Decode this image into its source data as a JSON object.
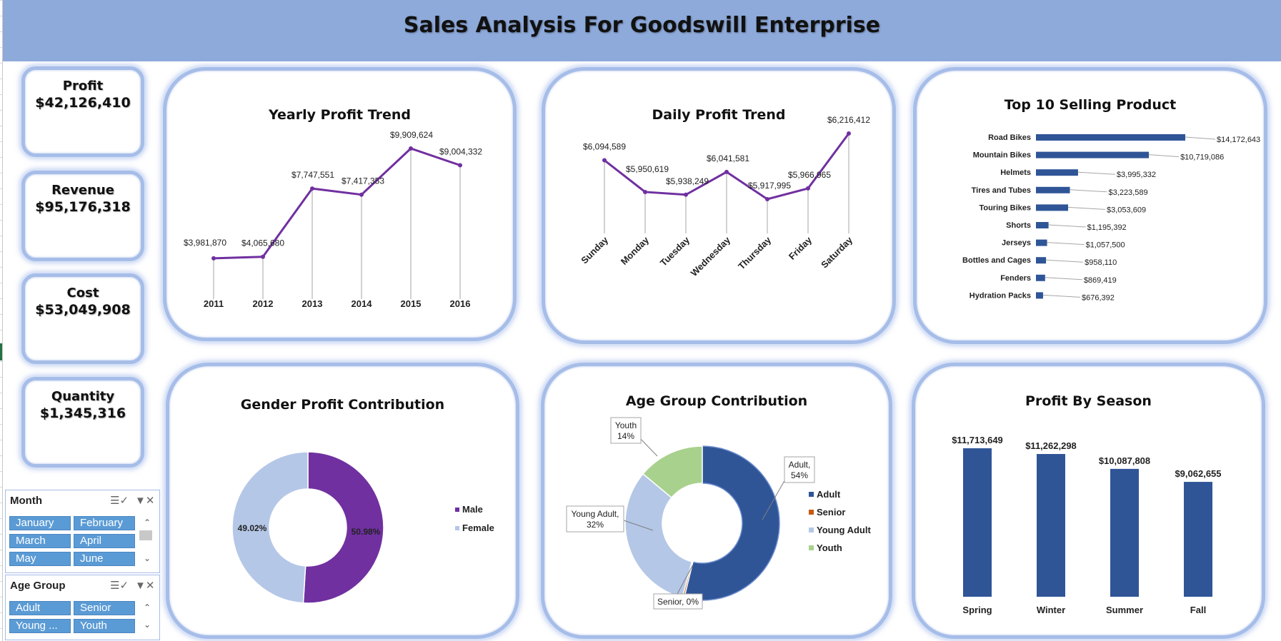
{
  "title": "Sales Analysis For Goodswill Enterprise",
  "kpis": [
    {
      "label": "Profit",
      "value": "$42,126,410"
    },
    {
      "label": "Revenue",
      "value": "$95,176,318"
    },
    {
      "label": "Cost",
      "value": "$53,049,908"
    },
    {
      "label": "Quantity",
      "value": "$1,345,316"
    }
  ],
  "slicers": {
    "month": {
      "title": "Month",
      "items": [
        "January",
        "February",
        "March",
        "April",
        "May",
        "June"
      ]
    },
    "age_group": {
      "title": "Age Group",
      "items": [
        "Adult",
        "Senior",
        "Young ...",
        "Youth"
      ]
    }
  },
  "colors": {
    "banner": "#8eaadb",
    "purple": "#7030a0",
    "blue": "#2f5597",
    "light_blue": "#b4c7e7",
    "green": "#a9d18e",
    "senior": "#c55a11"
  },
  "chart_data": [
    {
      "id": "yearly",
      "type": "line",
      "title": "Yearly Profit Trend",
      "categories": [
        "2011",
        "2012",
        "2013",
        "2014",
        "2015",
        "2016"
      ],
      "values": [
        3981870,
        4065680,
        7747551,
        7417353,
        9909624,
        9004332
      ],
      "labels": [
        "$3,981,870",
        "$4,065,680",
        "$7,747,551",
        "$7,417,353",
        "$9,909,624",
        "$9,004,332"
      ]
    },
    {
      "id": "daily",
      "type": "line",
      "title": "Daily Profit Trend",
      "categories": [
        "Sunday",
        "Monday",
        "Tuesday",
        "Wednesday",
        "Thursday",
        "Friday",
        "Saturday"
      ],
      "values": [
        6094589,
        5950619,
        5938249,
        6041581,
        5917995,
        5966965,
        6216412
      ],
      "labels": [
        "$6,094,589",
        "$5,950,619",
        "$5,938,249",
        "$6,041,581",
        "$5,917,995",
        "$5,966,965",
        "$6,216,412"
      ]
    },
    {
      "id": "top10",
      "type": "bar",
      "title": "Top 10 Selling Product",
      "categories": [
        "Road Bikes",
        "Mountain Bikes",
        "Helmets",
        "Tires and Tubes",
        "Touring Bikes",
        "Shorts",
        "Jerseys",
        "Bottles and Cages",
        "Fenders",
        "Hydration Packs"
      ],
      "values": [
        14172643,
        10719086,
        3995332,
        3223589,
        3053609,
        1195392,
        1057500,
        958110,
        869419,
        676392
      ],
      "labels": [
        "$14,172,643",
        "$10,719,086",
        "$3,995,332",
        "$3,223,589",
        "$3,053,609",
        "$1,195,392",
        "$1,057,500",
        "$958,110",
        "$869,419",
        "$676,392"
      ]
    },
    {
      "id": "gender",
      "type": "pie",
      "title": "Gender Profit Contribution",
      "categories": [
        "Male",
        "Female"
      ],
      "values": [
        50.98,
        49.02
      ],
      "labels": [
        "50.98%",
        "49.02%"
      ],
      "legend": "right"
    },
    {
      "id": "age",
      "type": "pie",
      "title": "Age Group Contribution",
      "categories": [
        "Adult",
        "Senior",
        "Young Adult",
        "Youth"
      ],
      "values": [
        54,
        0.4,
        32,
        14
      ],
      "labels": [
        "Adult, 54%",
        "Senior, 0%",
        "Young Adult, 32%",
        "Youth 14%"
      ],
      "legend": "right"
    },
    {
      "id": "season",
      "type": "bar",
      "title": "Profit By Season",
      "categories": [
        "Spring",
        "Winter",
        "Summer",
        "Fall"
      ],
      "values": [
        11713649,
        11262298,
        10087808,
        9062655
      ],
      "labels": [
        "$11,713,649",
        "$11,262,298",
        "$10,087,808",
        "$9,062,655"
      ]
    }
  ]
}
